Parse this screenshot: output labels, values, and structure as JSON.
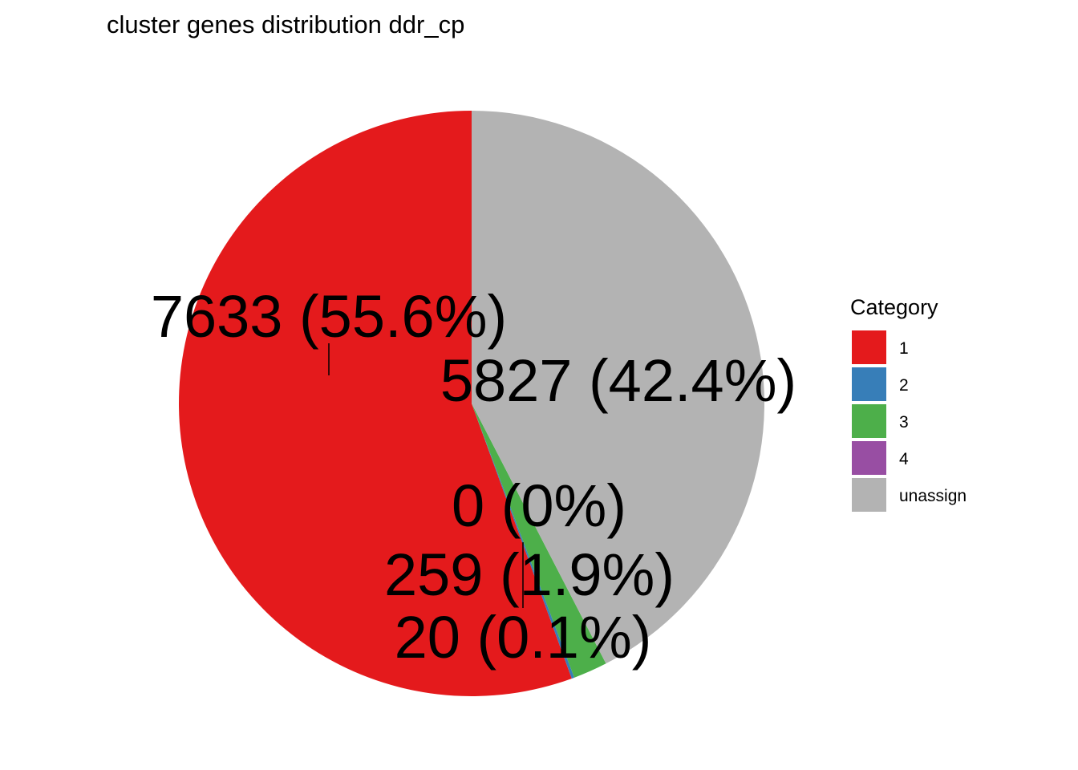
{
  "chart_data": {
    "type": "pie",
    "title": "cluster genes distribution ddr_cp",
    "legend": {
      "title": "Category",
      "position": "right"
    },
    "start": "top",
    "direction": "counterclockwise",
    "slices": [
      {
        "category": "1",
        "value": 7633,
        "label": "7633 (55.6%)",
        "color": "#E41A1C"
      },
      {
        "category": "2",
        "value": 20,
        "label": "20 (0.1%)",
        "color": "#377EB8"
      },
      {
        "category": "3",
        "value": 259,
        "label": "259 (1.9%)",
        "color": "#4DAF4A"
      },
      {
        "category": "4",
        "value": 0,
        "label": "0 (0%)",
        "color": "#984EA3"
      },
      {
        "category": "unassign",
        "value": 5827,
        "label": "5827 (42.4%)",
        "color": "#B3B3B3"
      }
    ]
  }
}
